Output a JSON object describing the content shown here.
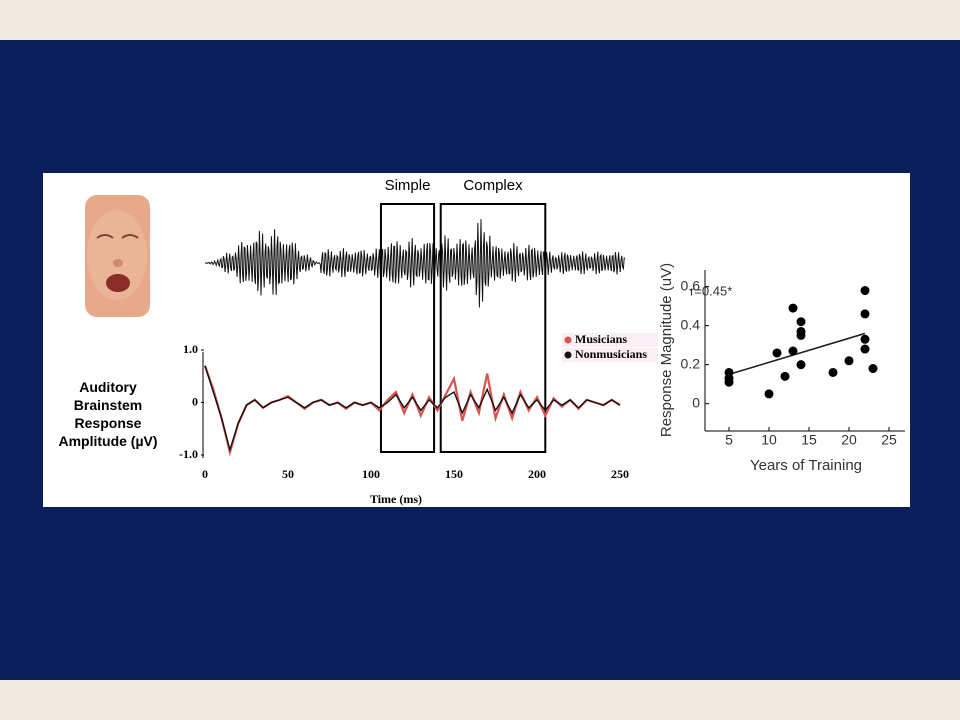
{
  "chart_data": [
    {
      "type": "line",
      "xlabel": "Time (ms)",
      "ylabel": "Auditory Brainstem Response Amplitude (µV)",
      "xlim": [
        0,
        250
      ],
      "ylim": [
        -1,
        1
      ],
      "xticks": [
        0,
        50,
        100,
        150,
        200,
        250
      ],
      "yticks": [
        {
          "value": 1,
          "label": "1.0"
        },
        0,
        {
          "value": -1,
          "label": "-1.0"
        }
      ],
      "regions": [
        {
          "label": "Simple",
          "x": [
            106,
            138
          ]
        },
        {
          "label": "Complex",
          "x": [
            142,
            205
          ]
        }
      ],
      "x": [
        0,
        5,
        10,
        15,
        20,
        25,
        30,
        35,
        40,
        45,
        50,
        55,
        60,
        65,
        70,
        75,
        80,
        85,
        90,
        95,
        100,
        105,
        110,
        115,
        120,
        125,
        130,
        135,
        140,
        145,
        150,
        155,
        160,
        165,
        170,
        175,
        180,
        185,
        190,
        195,
        200,
        205,
        210,
        215,
        220,
        225,
        230,
        235,
        240,
        245,
        250
      ],
      "series": [
        {
          "name": "Musicians",
          "color": "#d9534f",
          "values": [
            0.7,
            0.25,
            -0.3,
            -0.95,
            -0.4,
            -0.05,
            0.05,
            -0.1,
            0.0,
            0.05,
            0.12,
            0.0,
            -0.12,
            0.0,
            0.05,
            -0.05,
            0.0,
            -0.12,
            0.0,
            -0.05,
            0.0,
            -0.15,
            0.05,
            0.2,
            -0.2,
            0.15,
            -0.25,
            0.1,
            -0.15,
            0.15,
            0.45,
            -0.35,
            0.2,
            -0.2,
            0.55,
            -0.3,
            0.15,
            -0.3,
            0.2,
            -0.15,
            0.1,
            -0.25,
            0.08,
            -0.08,
            0.05,
            -0.12,
            0.05,
            0.0,
            -0.05,
            0.05,
            -0.05
          ]
        },
        {
          "name": "Nonmusicians",
          "color": "#111111",
          "values": [
            0.7,
            0.2,
            -0.3,
            -0.9,
            -0.4,
            -0.05,
            0.05,
            -0.1,
            0.0,
            0.05,
            0.1,
            0.0,
            -0.1,
            0.0,
            0.05,
            -0.05,
            0.0,
            -0.1,
            0.0,
            -0.05,
            0.0,
            -0.1,
            0.0,
            0.15,
            -0.1,
            0.1,
            -0.15,
            0.05,
            -0.1,
            0.1,
            0.2,
            -0.2,
            0.15,
            -0.1,
            0.25,
            -0.15,
            0.1,
            -0.2,
            0.15,
            -0.1,
            0.05,
            -0.15,
            0.05,
            -0.05,
            0.05,
            -0.1,
            0.05,
            0.0,
            -0.05,
            0.05,
            -0.05
          ]
        }
      ]
    },
    {
      "type": "scatter",
      "xlabel": "Years of Training",
      "ylabel": "Response Magnitude (uV)",
      "annotation": "r=0.45*",
      "xlim": [
        2,
        27
      ],
      "ylim": [
        -0.14,
        0.68
      ],
      "xticks": [
        5,
        10,
        15,
        20,
        25
      ],
      "yticks": [
        0,
        0.2,
        0.4,
        0.6
      ],
      "color": "#000000",
      "x": [
        5,
        5,
        5,
        10,
        11,
        12,
        13,
        13,
        14,
        14,
        14,
        14,
        18,
        20,
        22,
        22,
        22,
        22,
        23
      ],
      "values": [
        0.16,
        0.13,
        0.11,
        0.05,
        0.26,
        0.14,
        0.49,
        0.27,
        0.42,
        0.37,
        0.35,
        0.2,
        0.16,
        0.22,
        0.58,
        0.46,
        0.33,
        0.28,
        0.18
      ],
      "trend_line": {
        "x": [
          5,
          22
        ],
        "y": [
          0.15,
          0.36
        ]
      }
    }
  ]
}
